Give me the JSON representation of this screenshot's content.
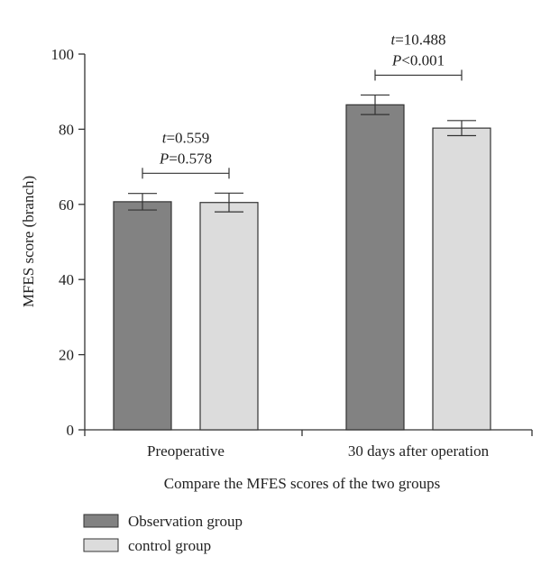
{
  "chart_data": {
    "type": "bar",
    "categories": [
      "Preoperative",
      "30 days after operation"
    ],
    "series": [
      {
        "name": "Observation group",
        "values": [
          60.7,
          86.5
        ],
        "error": [
          2.2,
          2.6
        ]
      },
      {
        "name": "control group",
        "values": [
          60.5,
          80.3
        ],
        "error": [
          2.5,
          2.0
        ]
      }
    ],
    "xlabel": "Compare the MFES scores of the two groups",
    "ylabel": "MFES score (branch)",
    "ylim": [
      0,
      100
    ],
    "yticks": [
      0,
      20,
      40,
      60,
      80,
      100
    ],
    "grid": false,
    "legend_position": "bottom-left",
    "annotations": [
      {
        "category": "Preoperative",
        "t_label": "t",
        "t_text": "=0.559",
        "p_label": "P",
        "p_text": "=0.578"
      },
      {
        "category": "30 days after operation",
        "t_label": "t",
        "t_text": "=10.488",
        "p_label": "P",
        "p_text": "<0.001"
      }
    ],
    "colors": {
      "Observation group": "#828282",
      "control group": "#dcdcdc",
      "stroke": "#333333"
    }
  }
}
